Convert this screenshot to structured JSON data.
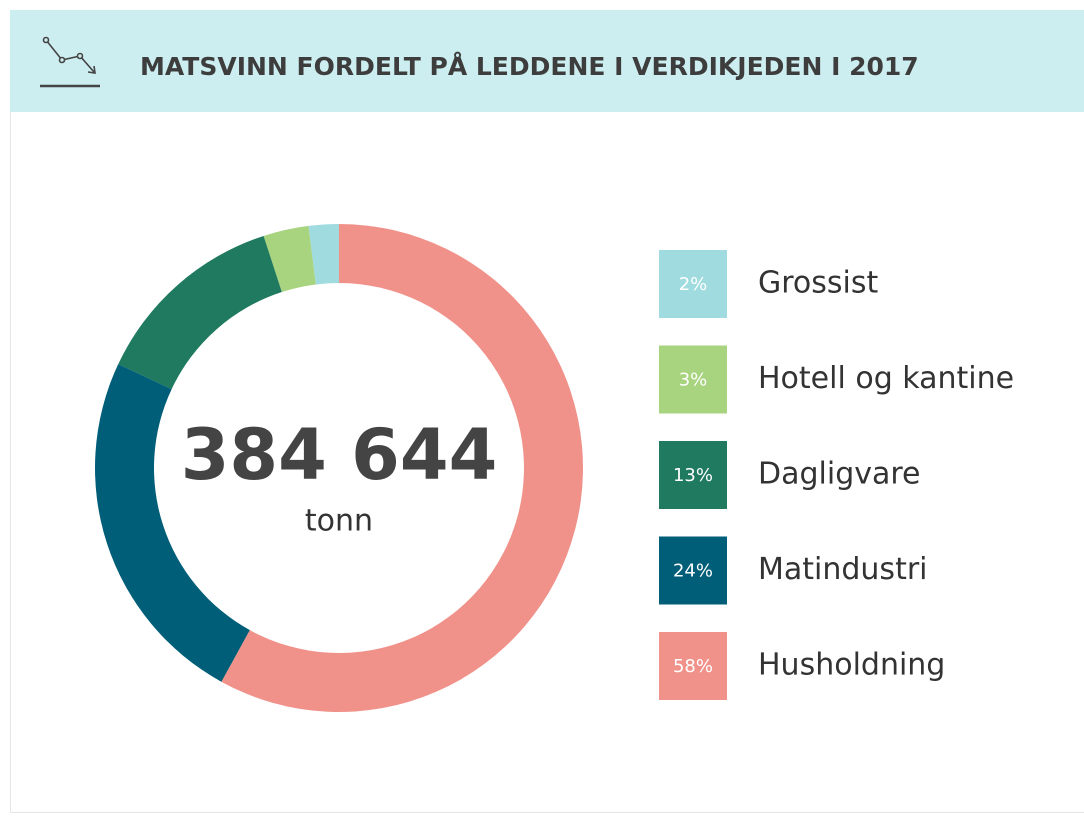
{
  "chart_data": {
    "type": "pie",
    "title": "MATSVINN FORDELT PÅ LEDDENE I VERDIKJEDEN I 2017",
    "center_label": "384 644",
    "center_sublabel": "tonn",
    "categories": [
      "Grossist",
      "Hotell og kantine",
      "Dagligvare",
      "Matindustri",
      "Husholdning"
    ],
    "values": [
      2,
      3,
      13,
      24,
      58
    ],
    "value_labels": [
      "2%",
      "3%",
      "13%",
      "24%",
      "58%"
    ],
    "colors": [
      "#a0dcdf",
      "#a8d37f",
      "#1f7a5f",
      "#005e78",
      "#f0928a"
    ]
  }
}
